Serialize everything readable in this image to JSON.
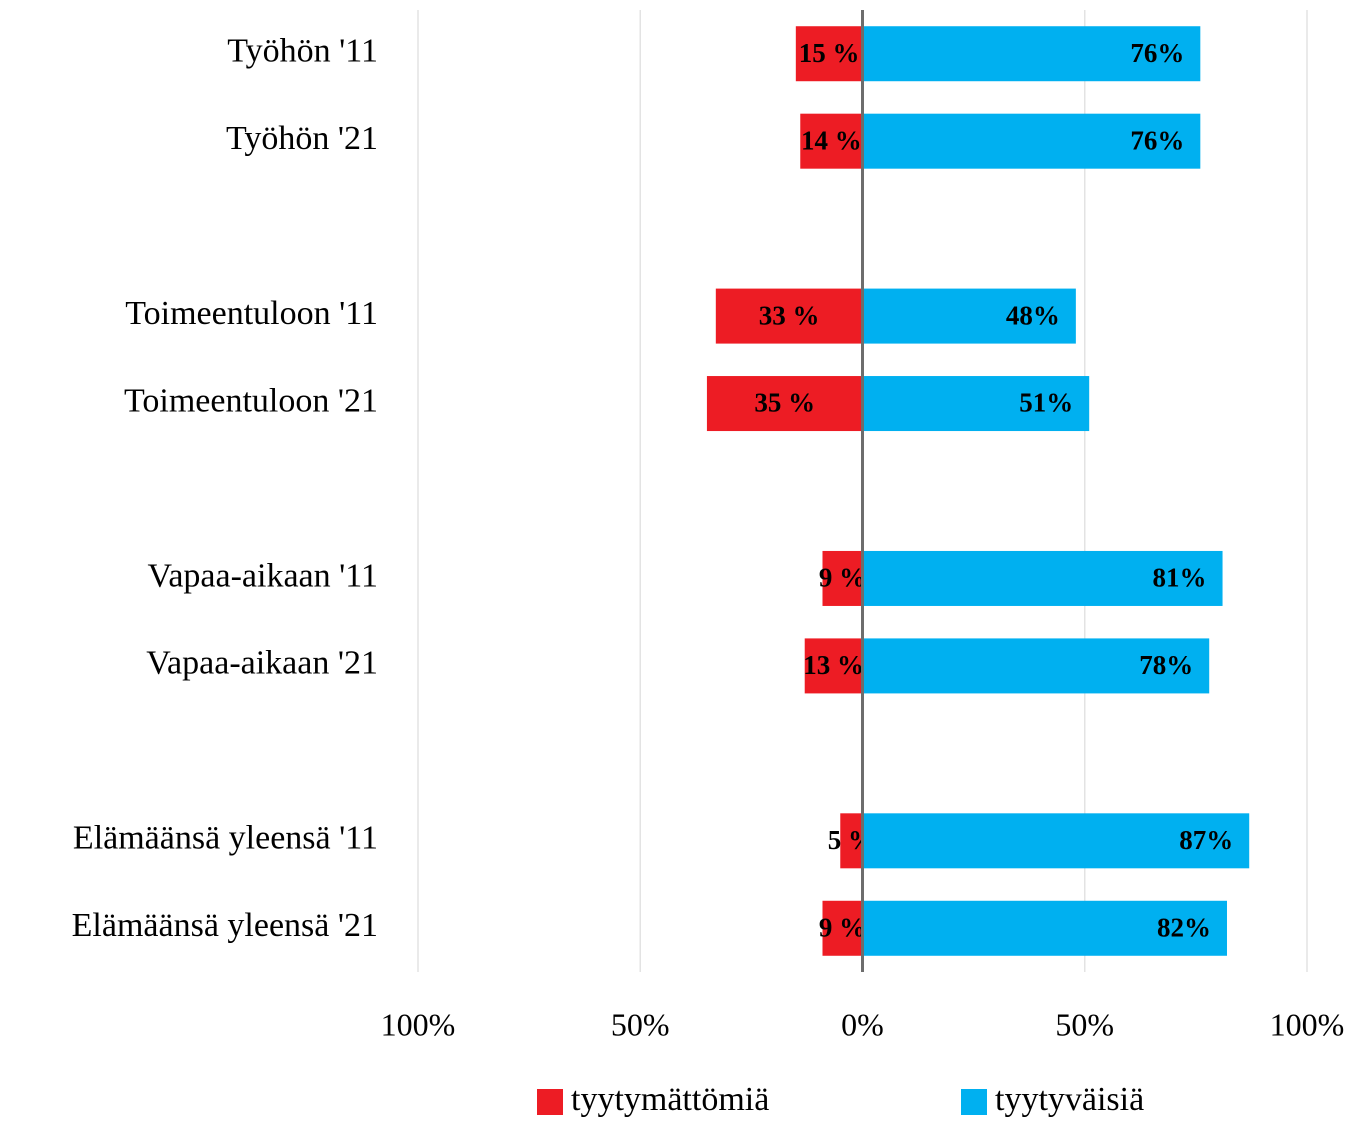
{
  "chart_data": {
    "type": "diverging-bar",
    "categories": [
      "Työhön '11",
      "Työhön '21",
      null,
      "Toimeentuloon '11",
      "Toimeentuloon '21",
      null,
      "Vapaa-aikaan '11",
      "Vapaa-aikaan '21",
      null,
      "Elämäänsä yleensä '11",
      "Elämäänsä yleensä '21"
    ],
    "series": [
      {
        "name": "tyytymättömiä",
        "color": "#ed1c24",
        "values": [
          -15,
          -14,
          null,
          -33,
          -35,
          null,
          -9,
          -13,
          null,
          -5,
          -9
        ],
        "value_labels": [
          "15 %",
          "14 %",
          null,
          "33 %",
          "35 %",
          null,
          "9 %",
          "13 %",
          null,
          "5 %",
          "9 %"
        ]
      },
      {
        "name": "tyytyväisiä",
        "color": "#00b0f0",
        "values": [
          76,
          76,
          null,
          48,
          51,
          null,
          81,
          78,
          null,
          87,
          82
        ],
        "value_labels": [
          "76%",
          "76%",
          null,
          "48%",
          "51%",
          null,
          "81%",
          "78%",
          null,
          "87%",
          "82%"
        ]
      }
    ],
    "xlim": [
      -100,
      100
    ],
    "xticks": [
      {
        "value": -100,
        "label": "100%"
      },
      {
        "value": -50,
        "label": "50%"
      },
      {
        "value": 0,
        "label": "0%"
      },
      {
        "value": 50,
        "label": "50%"
      },
      {
        "value": 100,
        "label": "100%"
      }
    ],
    "grid": true,
    "legend": "bottom"
  }
}
